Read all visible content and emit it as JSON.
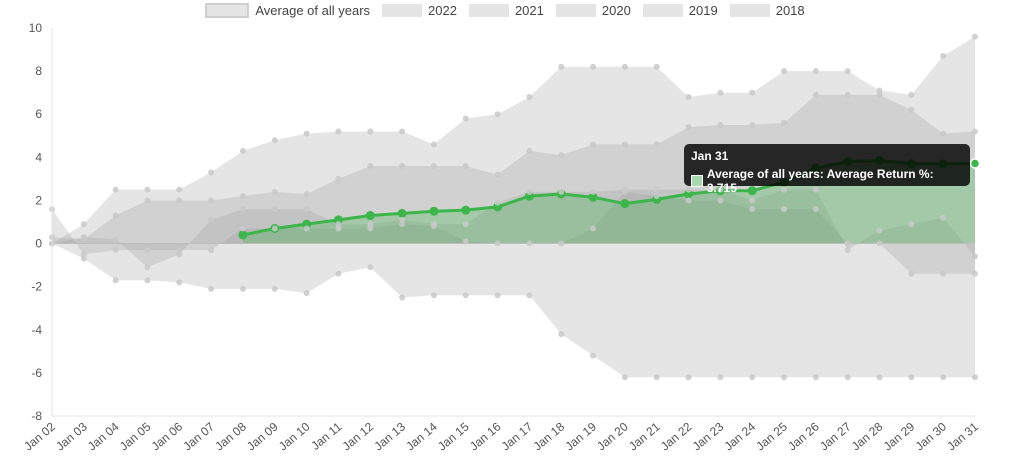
{
  "chart_data": {
    "type": "area",
    "categories": [
      "Jan 02",
      "Jan 03",
      "Jan 04",
      "Jan 05",
      "Jan 06",
      "Jan 07",
      "Jan 08",
      "Jan 09",
      "Jan 10",
      "Jan 11",
      "Jan 12",
      "Jan 13",
      "Jan 14",
      "Jan 15",
      "Jan 16",
      "Jan 17",
      "Jan 18",
      "Jan 19",
      "Jan 20",
      "Jan 21",
      "Jan 22",
      "Jan 23",
      "Jan 24",
      "Jan 25",
      "Jan 26",
      "Jan 27",
      "Jan 28",
      "Jan 29",
      "Jan 30",
      "Jan 31"
    ],
    "ylim": [
      -8,
      10
    ],
    "yticks": [
      10,
      8,
      6,
      4,
      2,
      0,
      -2,
      -4,
      -6,
      -8
    ],
    "grid": false,
    "legend_position": "top",
    "series": [
      {
        "name": "Average of all years",
        "color": "#3cb54a",
        "values": [
          null,
          null,
          null,
          null,
          null,
          null,
          0.4,
          0.7,
          0.9,
          1.1,
          1.3,
          1.4,
          1.5,
          1.55,
          1.7,
          2.2,
          2.3,
          2.15,
          1.85,
          2.05,
          2.3,
          2.45,
          2.45,
          2.85,
          3.5,
          3.8,
          3.85,
          3.7,
          3.7,
          3.715
        ]
      },
      {
        "name": "2022",
        "values": [
          0.0,
          -0.7,
          -1.7,
          -1.7,
          -1.8,
          -2.1,
          -2.1,
          -2.1,
          -2.3,
          -1.4,
          -1.1,
          -2.5,
          -2.4,
          -2.4,
          -2.4,
          -2.4,
          -4.2,
          -5.2,
          -6.2,
          -6.2,
          -6.2,
          -6.2,
          -6.2,
          -6.2,
          -6.2,
          -6.2,
          -6.2,
          -6.2,
          -6.2,
          -6.2
        ]
      },
      {
        "name": "2021",
        "values": [
          1.6,
          -0.5,
          -0.3,
          -0.3,
          -0.3,
          -0.3,
          0.7,
          0.7,
          0.7,
          0.7,
          0.7,
          0.9,
          0.8,
          0.1,
          0.0,
          0.0,
          0.0,
          0.7,
          2.4,
          2.2,
          2.0,
          2.0,
          1.6,
          1.6,
          1.6,
          0.0,
          0.0,
          -1.4,
          -1.4,
          -1.4
        ]
      },
      {
        "name": "2020",
        "values": [
          0.0,
          0.3,
          0.2,
          -1.1,
          -0.5,
          1.1,
          1.6,
          1.6,
          1.6,
          0.9,
          0.9,
          1.1,
          0.9,
          0.9,
          1.9,
          2.4,
          2.4,
          2.4,
          2.5,
          2.5,
          2.5,
          2.5,
          2.0,
          2.5,
          2.5,
          -0.3,
          0.6,
          0.9,
          1.2,
          -0.6
        ]
      },
      {
        "name": "2019",
        "values": [
          0.3,
          0.2,
          1.3,
          2.0,
          2.0,
          2.0,
          2.2,
          2.4,
          2.3,
          3.0,
          3.6,
          3.6,
          3.6,
          3.6,
          3.2,
          4.3,
          4.1,
          4.6,
          4.6,
          4.6,
          5.4,
          5.5,
          5.5,
          5.6,
          6.9,
          6.9,
          6.9,
          6.2,
          5.1,
          5.2
        ]
      },
      {
        "name": "2018",
        "values": [
          0.0,
          0.9,
          2.5,
          2.5,
          2.5,
          3.3,
          4.3,
          4.8,
          5.1,
          5.2,
          5.2,
          5.2,
          4.6,
          5.8,
          6.0,
          6.8,
          8.2,
          8.2,
          8.2,
          8.2,
          6.8,
          7.0,
          7.0,
          8.0,
          8.0,
          8.0,
          7.1,
          6.9,
          8.7,
          9.6
        ]
      }
    ],
    "tooltip": {
      "title": "Jan 31",
      "text": "Average of all years: Average Return %: 3.715"
    }
  }
}
